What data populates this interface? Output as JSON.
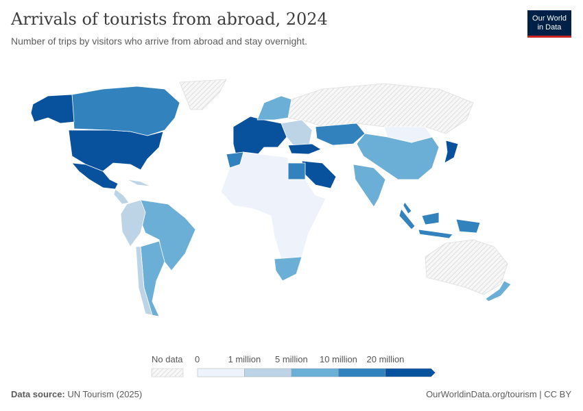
{
  "header": {
    "title": "Arrivals of tourists from abroad, 2024",
    "subtitle": "Number of trips by visitors who arrive from abroad and stay overnight.",
    "logo_text": "Our World in Data"
  },
  "footer": {
    "source_label": "Data source:",
    "source_value": "UN Tourism (2025)",
    "url_license": "OurWorldinData.org/tourism | CC BY"
  },
  "chart_data": {
    "type": "choropleth",
    "title": "Arrivals of tourists from abroad, 2024",
    "year": 2024,
    "legend": {
      "no_data_label": "No data",
      "tick_labels": [
        "0",
        "1 million",
        "5 million",
        "10 million",
        "20 million"
      ],
      "bins": [
        {
          "range": "0 – 1 million",
          "color": "#eef2fb"
        },
        {
          "range": "1 – 5 million",
          "color": "#bcd4e6"
        },
        {
          "range": "5 – 10 million",
          "color": "#6baed6"
        },
        {
          "range": "10 – 20 million",
          "color": "#3182bd"
        },
        {
          "range": "20 million+",
          "color": "#08519c"
        }
      ],
      "no_data_color": "#e8e8e8"
    },
    "regions": [
      {
        "name": "United States",
        "bin": 4
      },
      {
        "name": "Canada",
        "bin": 3
      },
      {
        "name": "Alaska",
        "bin": 4
      },
      {
        "name": "Mexico",
        "bin": 4
      },
      {
        "name": "Central America & Caribbean",
        "bin": 1
      },
      {
        "name": "Brazil",
        "bin": 2
      },
      {
        "name": "Argentina",
        "bin": 2
      },
      {
        "name": "Chile",
        "bin": 1
      },
      {
        "name": "Colombia / Peru",
        "bin": 1
      },
      {
        "name": "Greenland",
        "bin": null
      },
      {
        "name": "Russia",
        "bin": null
      },
      {
        "name": "Western Europe",
        "bin": 4
      },
      {
        "name": "Nordic countries",
        "bin": 2
      },
      {
        "name": "Eastern Europe",
        "bin": 1
      },
      {
        "name": "Turkey",
        "bin": 4
      },
      {
        "name": "Kazakhstan",
        "bin": 3
      },
      {
        "name": "Saudi Arabia",
        "bin": 4
      },
      {
        "name": "Egypt",
        "bin": 3
      },
      {
        "name": "Morocco",
        "bin": 3
      },
      {
        "name": "North & Central Africa",
        "bin": 0
      },
      {
        "name": "South Africa",
        "bin": 2
      },
      {
        "name": "India",
        "bin": 2
      },
      {
        "name": "China",
        "bin": 2
      },
      {
        "name": "Mongolia",
        "bin": 0
      },
      {
        "name": "Japan",
        "bin": 4
      },
      {
        "name": "Indonesia",
        "bin": 3
      },
      {
        "name": "Malaysia",
        "bin": 3
      },
      {
        "name": "Australia",
        "bin": null
      },
      {
        "name": "New Zealand",
        "bin": 2
      }
    ]
  }
}
